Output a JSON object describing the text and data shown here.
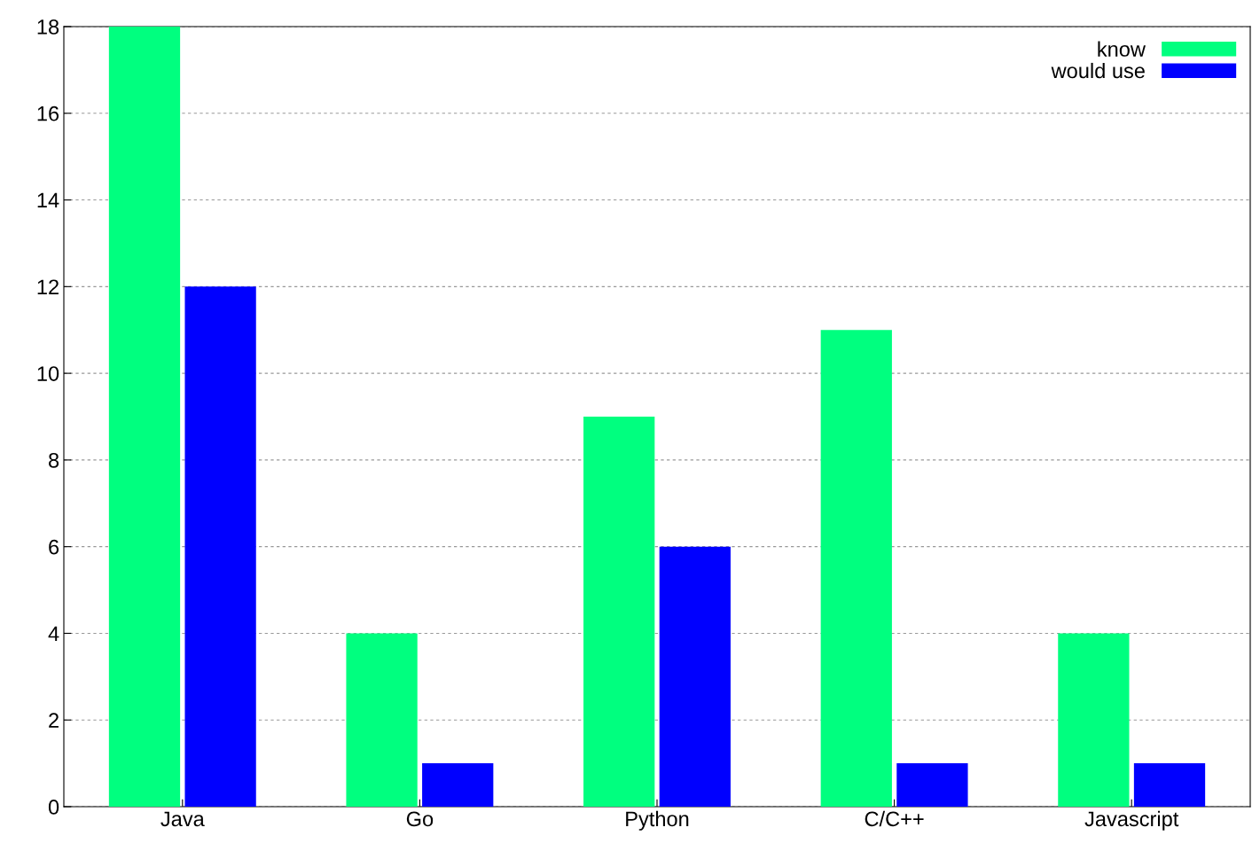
{
  "chart_data": {
    "type": "bar",
    "categories": [
      "Java",
      "Go",
      "Python",
      "C/C++",
      "Javascript"
    ],
    "series": [
      {
        "name": "know",
        "color": "#00ff7f",
        "values": [
          18,
          4,
          9,
          11,
          4
        ]
      },
      {
        "name": "would use",
        "color": "#0000ff",
        "values": [
          12,
          1,
          6,
          1,
          1
        ]
      }
    ],
    "ylim": [
      0,
      18
    ],
    "yticks": [
      0,
      2,
      4,
      6,
      8,
      10,
      12,
      14,
      16,
      18
    ],
    "grid": "y",
    "legend": "top right"
  }
}
